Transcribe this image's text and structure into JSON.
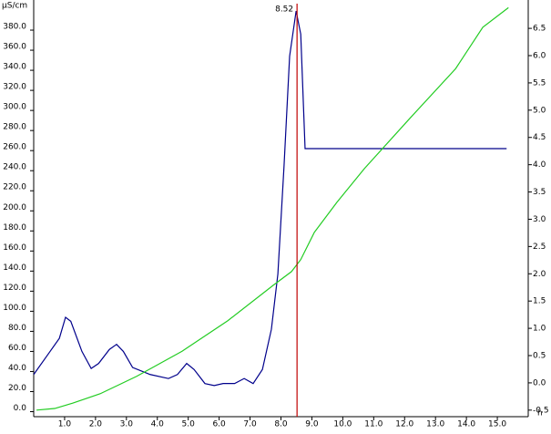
{
  "chart_data": {
    "type": "line",
    "y_label": "µS/cm",
    "x_label": "h",
    "xlim": [
      0,
      16
    ],
    "xticks": [
      {
        "value": 1,
        "label": "1.0"
      },
      {
        "value": 2,
        "label": "2.0"
      },
      {
        "value": 3,
        "label": "3.0"
      },
      {
        "value": 4,
        "label": "4.0"
      },
      {
        "value": 5,
        "label": "5.0"
      },
      {
        "value": 6,
        "label": "6.0"
      },
      {
        "value": 7,
        "label": "7.0"
      },
      {
        "value": 8,
        "label": "8.0"
      },
      {
        "value": 9,
        "label": "9.0"
      },
      {
        "value": 10,
        "label": "10.0"
      },
      {
        "value": 11,
        "label": "11.0"
      },
      {
        "value": 12,
        "label": "12.0"
      },
      {
        "value": 13,
        "label": "13.0"
      },
      {
        "value": 14,
        "label": "14.0"
      },
      {
        "value": 15,
        "label": "15.0"
      }
    ],
    "ylim": [
      -5,
      410
    ],
    "yticks": [
      {
        "value": 0,
        "label": "0.0"
      },
      {
        "value": 20,
        "label": "20.0"
      },
      {
        "value": 40,
        "label": "40.0"
      },
      {
        "value": 60,
        "label": "60.0"
      },
      {
        "value": 80,
        "label": "80.0"
      },
      {
        "value": 100,
        "label": "100.0"
      },
      {
        "value": 120,
        "label": "120.0"
      },
      {
        "value": 140,
        "label": "140.0"
      },
      {
        "value": 160,
        "label": "160.0"
      },
      {
        "value": 180,
        "label": "180.0"
      },
      {
        "value": 200,
        "label": "200.0"
      },
      {
        "value": 220,
        "label": "220.0"
      },
      {
        "value": 240,
        "label": "240.0"
      },
      {
        "value": 260,
        "label": "260.0"
      },
      {
        "value": 280,
        "label": "280.0"
      },
      {
        "value": 300,
        "label": "300.0"
      },
      {
        "value": 320,
        "label": "320.0"
      },
      {
        "value": 340,
        "label": "340.0"
      },
      {
        "value": 360,
        "label": "360.0"
      },
      {
        "value": 380,
        "label": "380.0"
      }
    ],
    "y2lim": [
      -0.62,
      7.02
    ],
    "y2ticks": [
      -0.5,
      {
        "value": 0,
        "label": "0.0"
      },
      0.5,
      {
        "value": 1,
        "label": "1.0"
      },
      1.5,
      {
        "value": 2,
        "label": "2.0"
      },
      2.5,
      {
        "value": 3,
        "label": "3.0"
      },
      3.5,
      {
        "value": 4,
        "label": "4.0"
      },
      4.5,
      {
        "value": 5,
        "label": "5.0"
      },
      5.5,
      {
        "value": 6,
        "label": "6.0"
      },
      6.5
    ],
    "series": [
      {
        "color": "#00008b",
        "x": [
          0,
          0.53,
          0.83,
          1.03,
          1.2,
          1.56,
          1.86,
          2.1,
          2.45,
          2.68,
          2.9,
          3.2,
          3.77,
          4.36,
          4.65,
          4.95,
          5.19,
          5.54,
          5.84,
          6.13,
          6.5,
          6.81,
          7.1,
          7.4,
          7.69,
          7.9,
          8.1,
          8.28,
          8.49,
          8.64,
          8.78,
          15.3
        ],
        "values": [
          37,
          60,
          73,
          94,
          90,
          60,
          43,
          48,
          62,
          67,
          60,
          44,
          37,
          33,
          37,
          48,
          42,
          28,
          26,
          28,
          28,
          33,
          28,
          42,
          82,
          137,
          245,
          354,
          399,
          376,
          262,
          262
        ]
      },
      {
        "color": "#22cc22",
        "axis": "y2",
        "x": [
          0.09,
          0.68,
          1.27,
          2.15,
          3.33,
          4.8,
          6.28,
          7.75,
          8.34,
          8.64,
          9.08,
          9.81,
          10.7,
          12.17,
          13.65,
          14.53,
          15.36
        ],
        "values": [
          -0.5,
          -0.47,
          -0.37,
          -0.2,
          0.12,
          0.58,
          1.14,
          1.79,
          2.04,
          2.26,
          2.76,
          3.31,
          3.93,
          4.85,
          5.76,
          6.52,
          6.88
        ]
      }
    ],
    "marker": {
      "x": 8.52,
      "color": "#c00000"
    }
  }
}
